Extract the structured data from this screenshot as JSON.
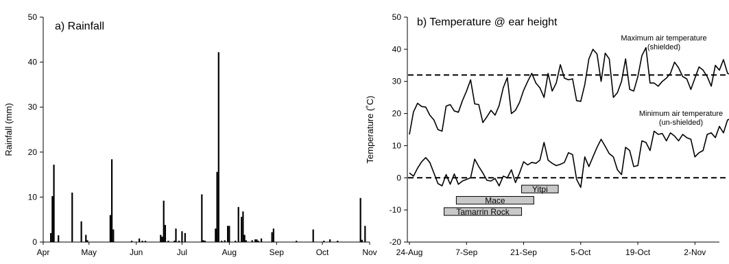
{
  "chart_data": [
    {
      "type": "bar",
      "title": "a) Rainfall",
      "ylabel": "Rainfall (mm)",
      "xlabel": "",
      "ylim": [
        0,
        50
      ],
      "yticks": [
        "0",
        "10",
        "20",
        "30",
        "40",
        "50"
      ],
      "x_range_days": [
        0,
        214
      ],
      "month_ticks": [
        {
          "label": "Apr",
          "day": 0
        },
        {
          "label": "May",
          "day": 30
        },
        {
          "label": "Jun",
          "day": 61
        },
        {
          "label": "Jul",
          "day": 91
        },
        {
          "label": "Aug",
          "day": 122
        },
        {
          "label": "Sep",
          "day": 153
        },
        {
          "label": "Oct",
          "day": 183
        },
        {
          "label": "Nov",
          "day": 214
        }
      ],
      "bars": [
        {
          "day": 5,
          "value": 2.0
        },
        {
          "day": 6,
          "value": 10.2
        },
        {
          "day": 7,
          "value": 17.2
        },
        {
          "day": 10,
          "value": 1.5
        },
        {
          "day": 19,
          "value": 11.0
        },
        {
          "day": 25,
          "value": 4.6
        },
        {
          "day": 28,
          "value": 1.6
        },
        {
          "day": 29,
          "value": 0.4
        },
        {
          "day": 44,
          "value": 6.0
        },
        {
          "day": 45,
          "value": 18.4
        },
        {
          "day": 46,
          "value": 2.8
        },
        {
          "day": 58,
          "value": 0.3
        },
        {
          "day": 63,
          "value": 0.8
        },
        {
          "day": 65,
          "value": 0.3
        },
        {
          "day": 67,
          "value": 0.3
        },
        {
          "day": 77,
          "value": 1.6
        },
        {
          "day": 78,
          "value": 1.2
        },
        {
          "day": 79,
          "value": 9.2
        },
        {
          "day": 80,
          "value": 3.8
        },
        {
          "day": 82,
          "value": 0.3
        },
        {
          "day": 86,
          "value": 0.3
        },
        {
          "day": 87,
          "value": 3.0
        },
        {
          "day": 89,
          "value": 0.3
        },
        {
          "day": 91,
          "value": 2.4
        },
        {
          "day": 93,
          "value": 2.0
        },
        {
          "day": 104,
          "value": 10.6
        },
        {
          "day": 105,
          "value": 0.4
        },
        {
          "day": 106,
          "value": 0.3
        },
        {
          "day": 113,
          "value": 3.0
        },
        {
          "day": 114,
          "value": 15.6
        },
        {
          "day": 115,
          "value": 42.2
        },
        {
          "day": 117,
          "value": 0.3
        },
        {
          "day": 119,
          "value": 0.4
        },
        {
          "day": 121,
          "value": 3.6
        },
        {
          "day": 122,
          "value": 3.6
        },
        {
          "day": 126,
          "value": 0.3
        },
        {
          "day": 128,
          "value": 7.8
        },
        {
          "day": 130,
          "value": 5.6
        },
        {
          "day": 131,
          "value": 6.8
        },
        {
          "day": 132,
          "value": 1.6
        },
        {
          "day": 133,
          "value": 0.4
        },
        {
          "day": 137,
          "value": 0.4
        },
        {
          "day": 139,
          "value": 0.6
        },
        {
          "day": 140,
          "value": 0.6
        },
        {
          "day": 141,
          "value": 0.3
        },
        {
          "day": 143,
          "value": 0.8
        },
        {
          "day": 150,
          "value": 2.2
        },
        {
          "day": 151,
          "value": 3.0
        },
        {
          "day": 166,
          "value": 0.3
        },
        {
          "day": 177,
          "value": 2.8
        },
        {
          "day": 184,
          "value": 0.3
        },
        {
          "day": 188,
          "value": 0.6
        },
        {
          "day": 193,
          "value": 0.3
        },
        {
          "day": 208,
          "value": 9.8
        },
        {
          "day": 209,
          "value": 0.5
        },
        {
          "day": 211,
          "value": 3.6
        }
      ]
    },
    {
      "type": "line",
      "title": "b) Temperature @ ear height",
      "ylabel": "Temperature (˚C)",
      "xlabel": "",
      "ylim": [
        -20,
        50
      ],
      "yticks": [
        "-20",
        "-10",
        "0",
        "10",
        "20",
        "30",
        "40",
        "50"
      ],
      "x_range_days": [
        0,
        76
      ],
      "date_ticks": [
        {
          "label": "24-Aug",
          "day": 0
        },
        {
          "label": "7-Sep",
          "day": 14
        },
        {
          "label": "21-Sep",
          "day": 28
        },
        {
          "label": "5-Oct",
          "day": 42
        },
        {
          "label": "19-Oct",
          "day": 56
        },
        {
          "label": "2-Nov",
          "day": 70
        }
      ],
      "reference_lines": [
        {
          "value": 32,
          "style": "dashed"
        },
        {
          "value": 0,
          "style": "dashed"
        }
      ],
      "series": [
        {
          "name": "Maximum air temperature (shielded)",
          "label_lines": [
            "Maximum air temperature",
            "(shielded)"
          ],
          "x": [
            0,
            1,
            2,
            3,
            4,
            5,
            6,
            7,
            8,
            9,
            10,
            11,
            12,
            13,
            14,
            15,
            16,
            17,
            18,
            19,
            20,
            21,
            22,
            23,
            24,
            25,
            26,
            27,
            28,
            29,
            30,
            31,
            32,
            33,
            34,
            35,
            36,
            37,
            38,
            39,
            40,
            41,
            42,
            43,
            44,
            45,
            46,
            47,
            48,
            49,
            50,
            51,
            52,
            53,
            54,
            55,
            56,
            57,
            58,
            59,
            60,
            61,
            62,
            63,
            64,
            65,
            66,
            67,
            68,
            69,
            70,
            71,
            72,
            73,
            74,
            75,
            76,
            77,
            78,
            79
          ],
          "values": [
            13.5,
            20.5,
            23.2,
            22.2,
            22.0,
            19.5,
            18.0,
            15.0,
            14.5,
            22.3,
            22.8,
            20.8,
            20.4,
            24.0,
            27.0,
            30.5,
            23.0,
            22.8,
            17.2,
            19.0,
            21.0,
            19.5,
            22.5,
            28.0,
            31.2,
            20.0,
            21.0,
            23.5,
            27.2,
            30.0,
            32.5,
            29.5,
            28.0,
            25.0,
            32.5,
            27.0,
            29.5,
            35.2,
            31.0,
            30.5,
            30.8,
            24.0,
            23.8,
            29.0,
            37.0,
            40.0,
            38.5,
            30.0,
            38.8,
            37.0,
            25.0,
            26.5,
            30.0,
            37.0,
            27.5,
            27.0,
            31.5,
            38.0,
            40.5,
            29.5,
            29.5,
            28.5,
            30.0,
            31.0,
            32.5,
            36.0,
            34.2,
            31.5,
            30.8,
            27.5,
            31.0,
            34.5,
            33.5,
            31.5,
            28.5,
            35.0,
            33.5,
            36.8,
            32.5,
            32.0
          ]
        },
        {
          "name": "Minimum air temperature (un-shielded)",
          "label_lines": [
            "Minimum air temperature",
            "(un-shielded)"
          ],
          "x": [
            0,
            1,
            2,
            3,
            4,
            5,
            6,
            7,
            8,
            9,
            10,
            11,
            12,
            13,
            14,
            15,
            16,
            17,
            18,
            19,
            20,
            21,
            22,
            23,
            24,
            25,
            26,
            27,
            28,
            29,
            30,
            31,
            32,
            33,
            34,
            35,
            36,
            37,
            38,
            39,
            40,
            41,
            42,
            43,
            44,
            45,
            46,
            47,
            48,
            49,
            50,
            51,
            52,
            53,
            54,
            55,
            56,
            57,
            58,
            59,
            60,
            61,
            62,
            63,
            64,
            65,
            66,
            67,
            68,
            69,
            70,
            71,
            72,
            73,
            74,
            75,
            76,
            77,
            78,
            79
          ],
          "values": [
            1.5,
            0.5,
            3.0,
            5.0,
            6.3,
            4.8,
            1.5,
            -1.8,
            -2.5,
            1.0,
            -2.0,
            1.2,
            -2.0,
            -1.0,
            -0.5,
            0.0,
            5.8,
            3.5,
            1.5,
            -0.8,
            -1.0,
            -0.2,
            -2.5,
            0.5,
            0.0,
            2.5,
            -1.5,
            1.5,
            5.0,
            4.0,
            4.8,
            4.5,
            5.5,
            11.0,
            5.5,
            4.5,
            3.8,
            4.2,
            4.8,
            7.8,
            7.2,
            -0.5,
            -3.0,
            6.5,
            3.5,
            6.5,
            9.5,
            12.0,
            9.8,
            7.5,
            6.5,
            2.5,
            1.0,
            9.5,
            8.5,
            3.5,
            3.8,
            11.5,
            11.0,
            8.5,
            14.5,
            13.5,
            13.8,
            11.5,
            14.0,
            13.0,
            11.5,
            13.5,
            12.5,
            12.0,
            6.5,
            7.8,
            8.5,
            13.5,
            14.0,
            12.5,
            16.0,
            14.0,
            18.0,
            18.5
          ]
        }
      ],
      "phase_bars": [
        {
          "label": "Yitpi",
          "start": 27.5,
          "end": 36.5,
          "level": -3.5
        },
        {
          "label": "Mace",
          "start": 11.5,
          "end": 30.5,
          "level": -7.0
        },
        {
          "label": "Tamarrin Rock",
          "start": 8.5,
          "end": 27.5,
          "level": -10.5
        }
      ]
    }
  ]
}
